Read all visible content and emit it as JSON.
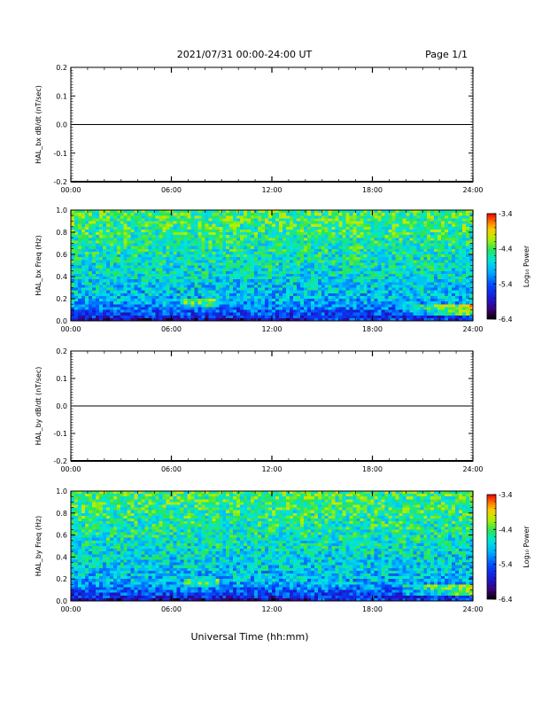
{
  "header": {
    "title": "2021/07/31  00:00-24:00 UT",
    "page": "Page 1/1"
  },
  "x_title": "Universal Time (hh:mm)",
  "chart_data": [
    {
      "type": "line",
      "ylabel": "HAL_bx dB/dt (nT/sec)",
      "xlim": [
        0,
        24
      ],
      "ylim": [
        -0.2,
        0.2
      ],
      "x_ticks": [
        "00:00",
        "06:00",
        "12:00",
        "18:00",
        "24:00"
      ],
      "y_ticks": [
        "0.2",
        "0.1",
        "0.0",
        "-0.1",
        "-0.2"
      ],
      "series": [
        {
          "x": [
            0,
            24
          ],
          "y": [
            0.0,
            0.0
          ]
        }
      ],
      "grid": false
    },
    {
      "type": "heatmap",
      "ylabel": "HAL_bx Freq (Hz)",
      "xlim": [
        0,
        24
      ],
      "ylim": [
        0.0,
        1.0
      ],
      "x_ticks": [
        "00:00",
        "06:00",
        "12:00",
        "18:00",
        "24:00"
      ],
      "y_ticks": [
        "1.0",
        "0.8",
        "0.6",
        "0.4",
        "0.2",
        "0.0"
      ],
      "colorbar": {
        "label": "Log₁₀ Power",
        "range": [
          -6.4,
          -3.4
        ],
        "ticks": [
          "-3.4",
          "-4.4",
          "-5.4",
          "-6.4"
        ]
      }
    },
    {
      "type": "line",
      "ylabel": "HAL_by dB/dt (nT/sec)",
      "xlim": [
        0,
        24
      ],
      "ylim": [
        -0.2,
        0.2
      ],
      "x_ticks": [
        "00:00",
        "06:00",
        "12:00",
        "18:00",
        "24:00"
      ],
      "y_ticks": [
        "0.2",
        "0.1",
        "0.0",
        "-0.1",
        "-0.2"
      ],
      "series": [
        {
          "x": [
            0,
            24
          ],
          "y": [
            0.0,
            0.0
          ]
        }
      ],
      "grid": false
    },
    {
      "type": "heatmap",
      "ylabel": "HAL_by Freq (Hz)",
      "xlim": [
        0,
        24
      ],
      "ylim": [
        0.0,
        1.0
      ],
      "x_ticks": [
        "00:00",
        "06:00",
        "12:00",
        "18:00",
        "24:00"
      ],
      "y_ticks": [
        "1.0",
        "0.8",
        "0.6",
        "0.4",
        "0.2",
        "0.0"
      ],
      "colorbar": {
        "label": "Log₁₀ Power",
        "range": [
          -6.4,
          -3.4
        ],
        "ticks": [
          "-3.4",
          "-4.4",
          "-5.4",
          "-6.4"
        ]
      }
    }
  ]
}
